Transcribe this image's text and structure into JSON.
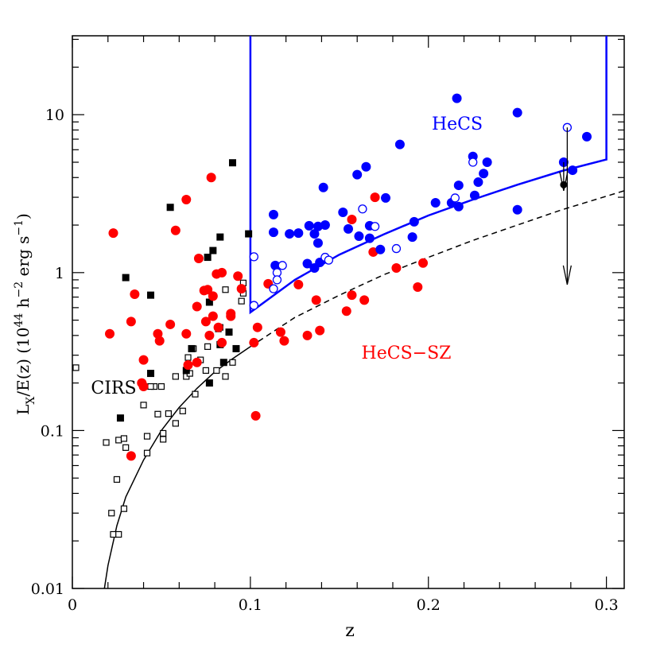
{
  "chart_data": {
    "type": "scatter",
    "xlabel": "z",
    "ylabel_parts": [
      "L",
      "X",
      "/E(z)  (10",
      "44",
      " h",
      "−2",
      " erg s",
      "−1",
      ")"
    ],
    "log_y": true,
    "xlim": [
      0,
      0.31
    ],
    "ylim": [
      0.01,
      31.6
    ],
    "xticks": [
      0,
      0.1,
      0.2,
      0.3
    ],
    "yticks": [
      0.01,
      0.1,
      1,
      10
    ],
    "xminorticks": [
      0.02,
      0.04,
      0.06,
      0.08,
      0.12,
      0.14,
      0.16,
      0.18,
      0.22,
      0.24,
      0.26,
      0.28
    ],
    "yminorticks": [
      0.02,
      0.03,
      0.04,
      0.05,
      0.06,
      0.07,
      0.08,
      0.09,
      0.2,
      0.3,
      0.4,
      0.5,
      0.6,
      0.7,
      0.8,
      0.9,
      2,
      3,
      4,
      5,
      6,
      7,
      8,
      9,
      20,
      30
    ],
    "annotations": [
      {
        "text": "HeCS",
        "color": "#0000ff"
      },
      {
        "text": "HeCS−SZ",
        "color": "#ff0000"
      },
      {
        "text": "CIRS",
        "color": "#000000"
      }
    ],
    "curves": [
      {
        "style": "solid",
        "color": "#000000",
        "x": [
          0.018,
          0.02,
          0.025,
          0.03,
          0.04,
          0.05,
          0.06,
          0.07,
          0.08,
          0.09,
          0.1
        ],
        "values": [
          0.01,
          0.014,
          0.025,
          0.038,
          0.065,
          0.1,
          0.14,
          0.185,
          0.235,
          0.285,
          0.34
        ]
      },
      {
        "style": "dashed",
        "color": "#000000",
        "x": [
          0.1,
          0.125,
          0.15,
          0.175,
          0.2,
          0.225,
          0.25,
          0.275,
          0.31
        ],
        "values": [
          0.34,
          0.52,
          0.72,
          0.97,
          1.25,
          1.6,
          2.0,
          2.5,
          3.3
        ]
      },
      {
        "style": "solid",
        "color": "#0000ff",
        "x": [
          0.1,
          0.1,
          0.125,
          0.15,
          0.175,
          0.2,
          0.225,
          0.25,
          0.275,
          0.3,
          0.3
        ],
        "values": [
          31.6,
          0.56,
          0.9,
          1.3,
          1.75,
          2.3,
          2.9,
          3.6,
          4.4,
          5.2,
          31.6
        ]
      }
    ],
    "upper_limits": [
      {
        "x": 0.278,
        "from": 8.3,
        "to": 0.84
      },
      {
        "x": 0.276,
        "from": 5.0,
        "to": 3.3
      }
    ],
    "series": [
      {
        "marker": "open-square",
        "color": "#000000",
        "x": [
          0.002,
          0.019,
          0.026,
          0.029,
          0.03,
          0.042,
          0.042,
          0.025,
          0.022,
          0.029,
          0.023,
          0.026,
          0.04,
          0.046,
          0.05,
          0.048,
          0.054,
          0.051,
          0.051,
          0.058,
          0.062,
          0.058,
          0.064,
          0.066,
          0.068,
          0.069,
          0.072,
          0.075,
          0.076,
          0.083,
          0.082,
          0.086,
          0.09,
          0.096,
          0.096,
          0.086,
          0.095,
          0.081,
          0.065,
          0.044
        ],
        "values": [
          0.25,
          0.084,
          0.087,
          0.089,
          0.078,
          0.072,
          0.092,
          0.049,
          0.03,
          0.032,
          0.022,
          0.022,
          0.145,
          0.19,
          0.19,
          0.127,
          0.128,
          0.096,
          0.088,
          0.111,
          0.133,
          0.22,
          0.22,
          0.23,
          0.33,
          0.17,
          0.28,
          0.24,
          0.34,
          0.45,
          0.44,
          0.22,
          0.27,
          0.74,
          0.86,
          0.78,
          0.66,
          0.24,
          0.29,
          0.19
        ]
      },
      {
        "marker": "square",
        "color": "#000000",
        "x": [
          0.09,
          0.055,
          0.083,
          0.099,
          0.079,
          0.076,
          0.03,
          0.044,
          0.077,
          0.067,
          0.088,
          0.092,
          0.083,
          0.085,
          0.077,
          0.044,
          0.027,
          0.064
        ],
        "values": [
          4.96,
          2.59,
          1.68,
          1.76,
          1.38,
          1.25,
          0.93,
          0.72,
          0.65,
          0.33,
          0.42,
          0.33,
          0.35,
          0.27,
          0.2,
          0.23,
          0.12,
          0.24
        ]
      },
      {
        "marker": "circle",
        "color": "#ff0000",
        "x": [
          0.023,
          0.021,
          0.033,
          0.035,
          0.04,
          0.039,
          0.04,
          0.033,
          0.048,
          0.049,
          0.055,
          0.058,
          0.064,
          0.064,
          0.07,
          0.07,
          0.065,
          0.071,
          0.078,
          0.074,
          0.076,
          0.075,
          0.077,
          0.079,
          0.079,
          0.081,
          0.084,
          0.084,
          0.082,
          0.089,
          0.089,
          0.093,
          0.095,
          0.102,
          0.103,
          0.104,
          0.11,
          0.117,
          0.119,
          0.127,
          0.132,
          0.137,
          0.139,
          0.154,
          0.157,
          0.164,
          0.169,
          0.17,
          0.157,
          0.182,
          0.194,
          0.197
        ],
        "values": [
          1.78,
          0.41,
          0.49,
          0.73,
          0.28,
          0.2,
          0.19,
          0.069,
          0.41,
          0.37,
          0.47,
          1.85,
          2.9,
          0.41,
          0.61,
          0.27,
          0.26,
          1.23,
          4.0,
          0.77,
          0.78,
          0.49,
          0.4,
          0.53,
          0.71,
          0.98,
          1.0,
          0.36,
          0.45,
          0.53,
          0.55,
          0.95,
          0.79,
          0.36,
          0.124,
          0.45,
          0.85,
          0.42,
          0.37,
          0.84,
          0.4,
          0.67,
          0.43,
          0.57,
          0.72,
          0.67,
          1.35,
          3.0,
          2.17,
          1.07,
          0.81,
          1.15
        ]
      },
      {
        "marker": "circle",
        "color": "#0000ff",
        "x": [
          0.113,
          0.113,
          0.114,
          0.122,
          0.127,
          0.133,
          0.132,
          0.136,
          0.138,
          0.138,
          0.141,
          0.142,
          0.139,
          0.136,
          0.152,
          0.155,
          0.16,
          0.161,
          0.165,
          0.167,
          0.167,
          0.173,
          0.176,
          0.184,
          0.191,
          0.192,
          0.204,
          0.213,
          0.216,
          0.217,
          0.217,
          0.225,
          0.226,
          0.228,
          0.231,
          0.233,
          0.25,
          0.25,
          0.276,
          0.281,
          0.289
        ],
        "values": [
          2.33,
          1.8,
          1.11,
          1.76,
          1.78,
          1.98,
          1.14,
          1.76,
          1.54,
          1.96,
          3.46,
          2.0,
          1.16,
          1.07,
          2.41,
          1.89,
          4.17,
          1.7,
          4.68,
          1.65,
          1.98,
          1.4,
          2.97,
          6.48,
          1.68,
          2.1,
          2.77,
          2.77,
          12.7,
          3.57,
          2.62,
          5.44,
          3.08,
          3.74,
          4.24,
          5.0,
          10.3,
          2.5,
          5.0,
          4.45,
          7.26
        ]
      },
      {
        "marker": "open-circle",
        "color": "#0000ff",
        "x": [
          0.102,
          0.102,
          0.113,
          0.115,
          0.115,
          0.118,
          0.142,
          0.144,
          0.163,
          0.17,
          0.182,
          0.215,
          0.225,
          0.278
        ],
        "values": [
          1.26,
          0.62,
          0.79,
          1.0,
          0.9,
          1.11,
          1.25,
          1.2,
          2.53,
          1.96,
          1.42,
          2.97,
          5.0,
          8.3
        ]
      },
      {
        "marker": "circle",
        "color": "#000000",
        "x": [
          0.276
        ],
        "values": [
          3.6
        ]
      }
    ]
  }
}
